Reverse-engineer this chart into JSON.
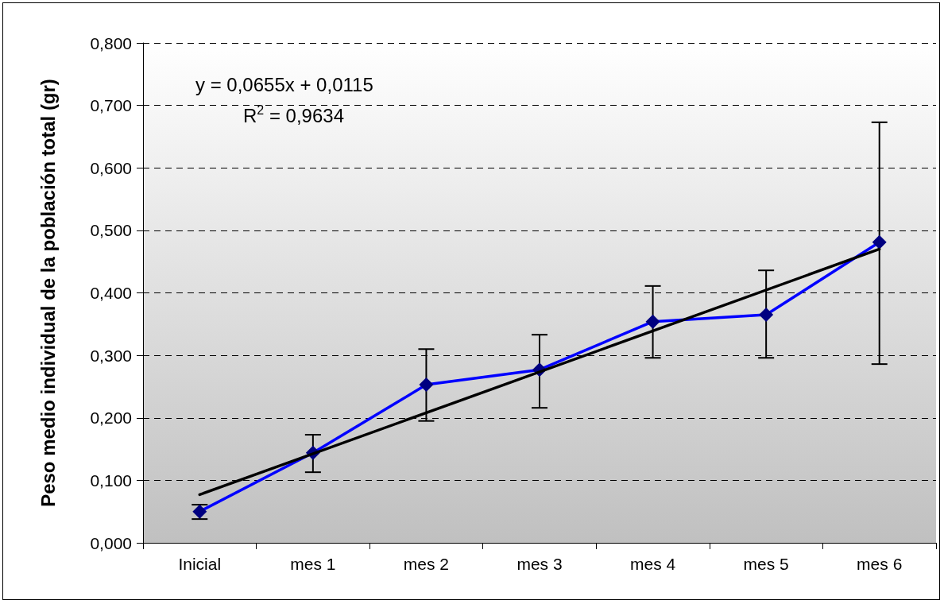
{
  "chart_data": {
    "type": "line",
    "ylabel": "Peso medio individual de la población total (gr)",
    "categories": [
      "Inicial",
      "mes 1",
      "mes 2",
      "mes 3",
      "mes 4",
      "mes 5",
      "mes 6"
    ],
    "series": [
      {
        "color": "#0000ff",
        "marker": "diamond",
        "values": [
          0.05,
          0.144,
          0.253,
          0.277,
          0.354,
          0.365,
          0.481
        ],
        "errors": [
          [
            0.038,
            0.061
          ],
          [
            0.113,
            0.173
          ],
          [
            0.195,
            0.31
          ],
          [
            0.216,
            0.333
          ],
          [
            0.296,
            0.411
          ],
          [
            0.296,
            0.436
          ],
          [
            0.286,
            0.673
          ]
        ]
      },
      {
        "color": "#000000",
        "marker": "none",
        "x": [
          "Inicial",
          "mes 6"
        ],
        "values": [
          0.077,
          0.47
        ]
      }
    ],
    "ylim": [
      0,
      0.8
    ],
    "yticks": [
      {
        "value": 0,
        "label": "0,000"
      },
      {
        "value": 0.1,
        "label": "0,100"
      },
      {
        "value": 0.2,
        "label": "0,200"
      },
      {
        "value": 0.3,
        "label": "0,300"
      },
      {
        "value": 0.4,
        "label": "0,400"
      },
      {
        "value": 0.5,
        "label": "0,500"
      },
      {
        "value": 0.6,
        "label": "0,600"
      },
      {
        "value": 0.7,
        "label": "0,700"
      },
      {
        "value": 0.8,
        "label": "0,800"
      }
    ],
    "grid": "y",
    "annotations": [
      "y = 0,0655x + 0,0115",
      "R$^{2}$ = 0,9634"
    ]
  }
}
